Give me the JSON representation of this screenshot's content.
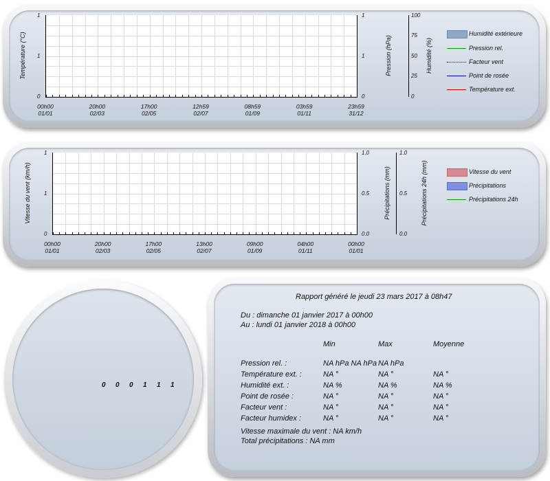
{
  "chart_data": [
    {
      "type": "line",
      "y_left_label": "Température (°C)",
      "y_left_ticks": [
        "1",
        "1",
        "0"
      ],
      "y_right1_label": "Pression (hPa)",
      "y_right1_ticks": [
        "1",
        "1",
        "0"
      ],
      "y_right2_label": "Humidité (%)",
      "y_right2_ticks": [
        "100",
        "75",
        "50",
        "25",
        "0"
      ],
      "x_ticks": [
        {
          "time": "00h00",
          "date": "01/01"
        },
        {
          "time": "20h00",
          "date": "02/03"
        },
        {
          "time": "17h00",
          "date": "02/05"
        },
        {
          "time": "12h59",
          "date": "02/07"
        },
        {
          "time": "08h59",
          "date": "01/09"
        },
        {
          "time": "03h59",
          "date": "01/11"
        },
        {
          "time": "23h59",
          "date": "31/12"
        }
      ],
      "series": [
        {
          "name": "Humidité extérieure",
          "values": []
        },
        {
          "name": "Pression rel.",
          "values": []
        },
        {
          "name": "Facteur vent",
          "values": []
        },
        {
          "name": "Point de rosée",
          "values": []
        },
        {
          "name": "Température ext.",
          "values": []
        }
      ],
      "grid": true,
      "legend": "right"
    },
    {
      "type": "bar",
      "y_left_label": "Vitesse du vent (km/h)",
      "y_left_ticks": [
        "1",
        "1",
        "0"
      ],
      "y_right1_label": "Précipitations (mm)",
      "y_right1_ticks": [
        "1.0",
        "0.5",
        "0.0"
      ],
      "y_right2_label": "Précipitations 24h (mm)",
      "y_right2_ticks": [
        "1.0",
        "0.5",
        "0.0"
      ],
      "x_ticks": [
        {
          "time": "00h00",
          "date": "01/01"
        },
        {
          "time": "20h00",
          "date": "02/03"
        },
        {
          "time": "17h00",
          "date": "02/05"
        },
        {
          "time": "13h00",
          "date": "02/07"
        },
        {
          "time": "09h00",
          "date": "01/09"
        },
        {
          "time": "04h00",
          "date": "01/11"
        },
        {
          "time": "00h00",
          "date": "01/01"
        }
      ],
      "series": [
        {
          "name": "Vitesse du vent",
          "values": []
        },
        {
          "name": "Précipitations",
          "values": []
        },
        {
          "name": "Précipitations 24h",
          "values": []
        }
      ],
      "grid": true,
      "legend": "right"
    }
  ],
  "legend_colors": {
    "humidite": "#8fa8c8",
    "pression": "#00a000",
    "facteur_vent": "#0000d0",
    "point_rosee": "#0000d0",
    "temperature": "#e00000",
    "vitesse_vent": "#d88a94",
    "precipitations": "#7f8ee0",
    "precip24": "#00a000"
  },
  "odometer": [
    "0",
    "0",
    "0",
    "1",
    "1",
    "1"
  ],
  "report": {
    "title": "Rapport généré le jeudi 23 mars 2017 à 08h47",
    "from": "Du : dimanche 01 janvier 2017 à 00h00",
    "to": "Au : lundi 01 janvier 2018 à 00h00",
    "headers": [
      "Min",
      "Max",
      "Moyenne"
    ],
    "rows": [
      {
        "label": "Pression rel. :",
        "min": "NA hPa NA hPa",
        "max": "NA hPa",
        "avg": ""
      },
      {
        "label": "Température ext. :",
        "min": "NA °",
        "max": "NA °",
        "avg": "NA °"
      },
      {
        "label": "Humidité ext. :",
        "min": "NA %",
        "max": "NA %",
        "avg": "NA %"
      },
      {
        "label": "Point de rosée :",
        "min": "NA °",
        "max": "NA °",
        "avg": "NA °"
      },
      {
        "label": "Facteur vent :",
        "min": "NA °",
        "max": "NA °",
        "avg": "NA °"
      },
      {
        "label": "Facteur humidex :",
        "min": "NA °",
        "max": "NA °",
        "avg": "NA °"
      }
    ],
    "wind_max": "Vitesse maximale du vent : NA km/h",
    "rain_total": "Total précipitations : NA mm"
  }
}
